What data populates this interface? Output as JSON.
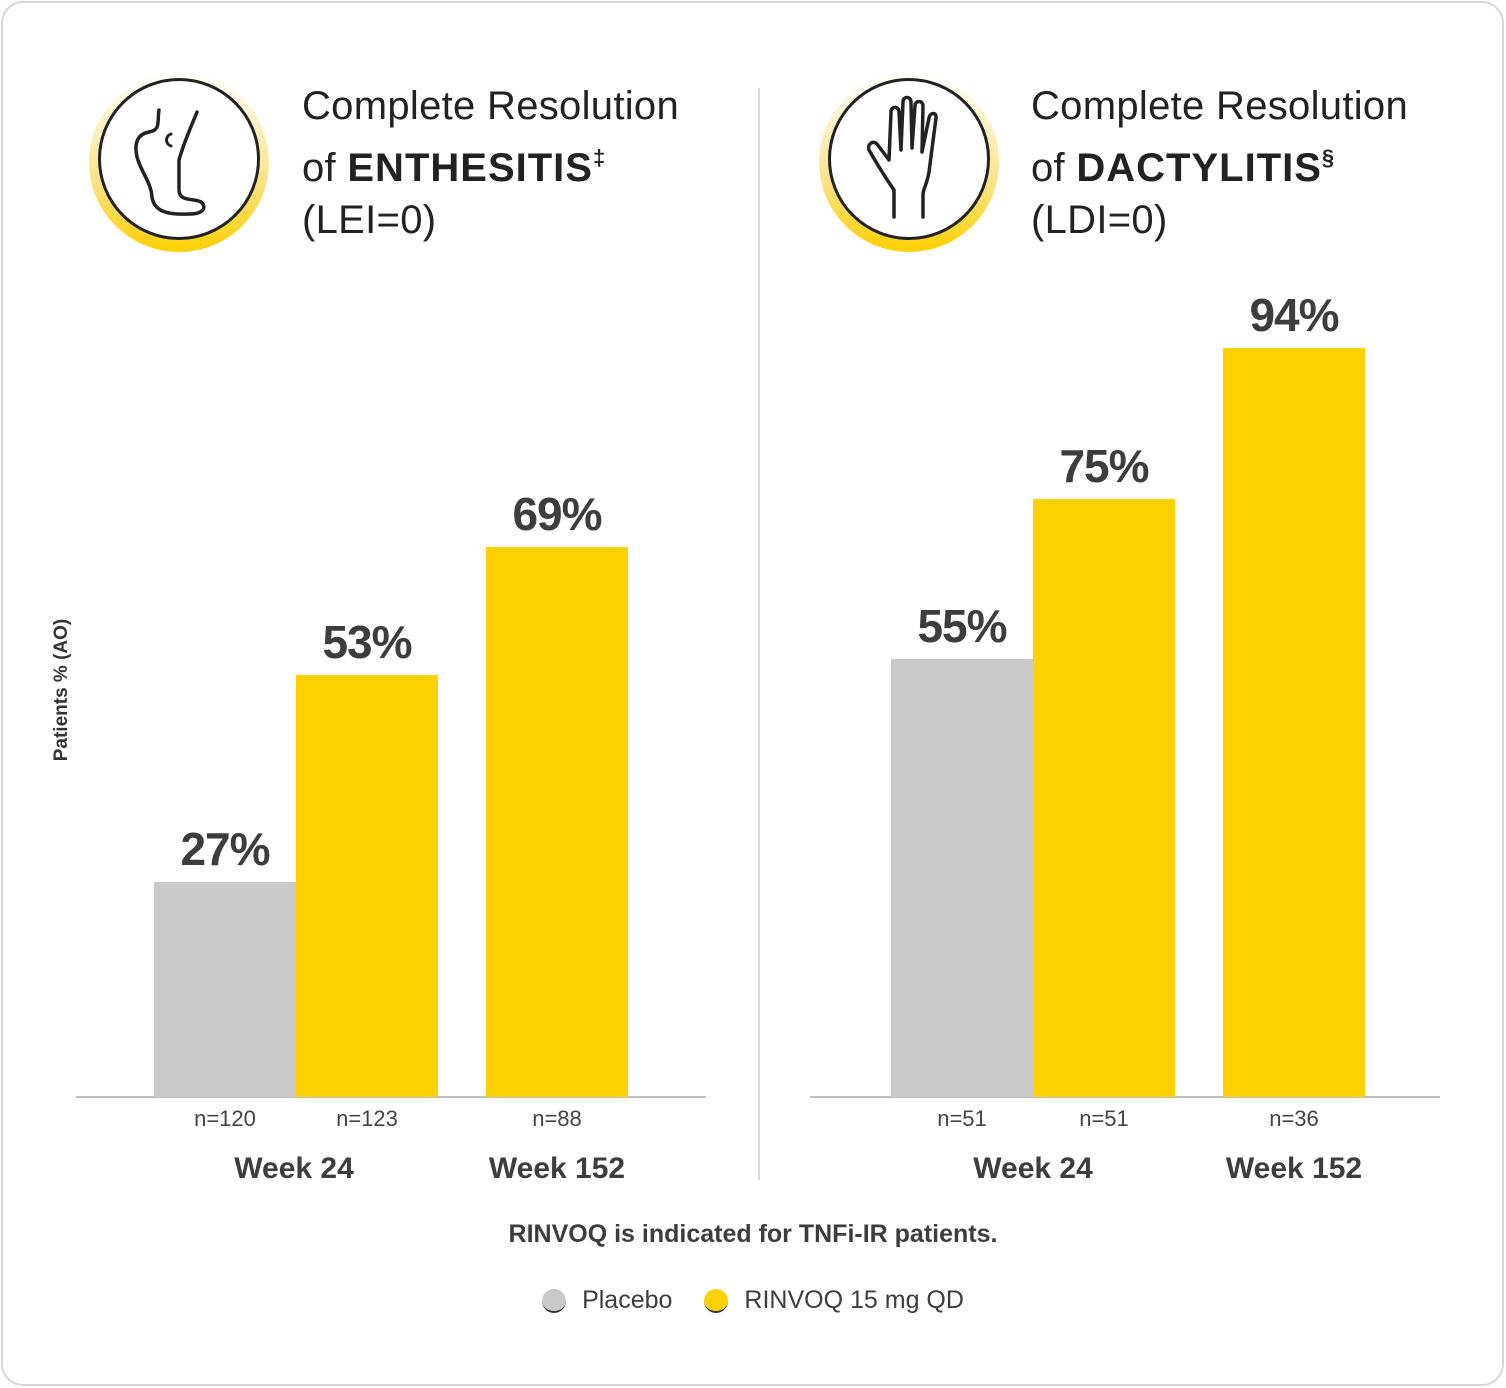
{
  "chart_data": [
    {
      "type": "bar",
      "title_line1": "Complete Resolution",
      "title_prefix": "of ",
      "title_bold": "ENTHESITIS",
      "title_sup": "‡",
      "title_line3": "(LEI=0)",
      "icon": "foot-icon",
      "ylabel": "Patients % (AO)",
      "ylim": [
        0,
        100
      ],
      "categories": [
        "Week 24",
        "Week 152"
      ],
      "bars": [
        {
          "group": "Week 24",
          "series": "Placebo",
          "value": 27,
          "label": "27%",
          "n": "n=120"
        },
        {
          "group": "Week 24",
          "series": "RINVOQ 15 mg QD",
          "value": 53,
          "label": "53%",
          "n": "n=123"
        },
        {
          "group": "Week 152",
          "series": "RINVOQ 15 mg QD",
          "value": 69,
          "label": "69%",
          "n": "n=88"
        }
      ]
    },
    {
      "type": "bar",
      "title_line1": "Complete Resolution",
      "title_prefix": "of ",
      "title_bold": "DACTYLITIS",
      "title_sup": "§",
      "title_line3": "(LDI=0)",
      "icon": "hand-icon",
      "ylim": [
        0,
        100
      ],
      "categories": [
        "Week 24",
        "Week 152"
      ],
      "bars": [
        {
          "group": "Week 24",
          "series": "Placebo",
          "value": 55,
          "label": "55%",
          "n": "n=51"
        },
        {
          "group": "Week 24",
          "series": "RINVOQ 15 mg QD",
          "value": 75,
          "label": "75%",
          "n": "n=51"
        },
        {
          "group": "Week 152",
          "series": "RINVOQ 15 mg QD",
          "value": 94,
          "label": "94%",
          "n": "n=36"
        }
      ]
    }
  ],
  "note": "RINVOQ is indicated for TNFi-IR patients.",
  "legend": [
    {
      "label": "Placebo",
      "color": "#c9c9c9"
    },
    {
      "label": "RINVOQ 15 mg QD",
      "color": "#ffd100"
    }
  ]
}
